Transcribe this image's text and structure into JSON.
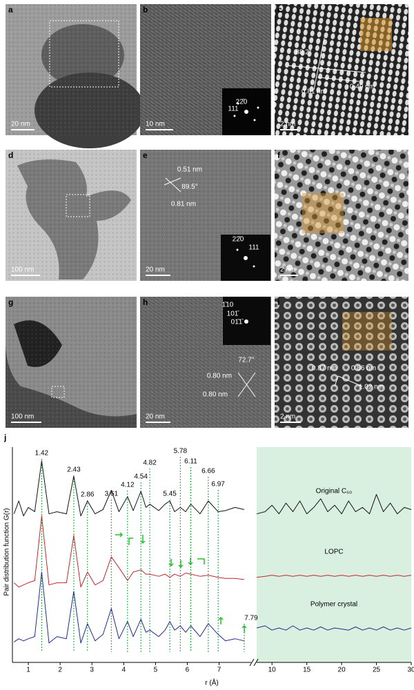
{
  "panels": [
    {
      "label": "a",
      "scale_bar": "20 nm",
      "annotations": []
    },
    {
      "label": "b",
      "scale_bar": "10 nm",
      "annotations": [
        "22̄0",
        "111"
      ]
    },
    {
      "label": "c",
      "scale_bar": "2 nm",
      "annotations": [
        "88.2°",
        "0.81 nm",
        "0.49 nm"
      ]
    },
    {
      "label": "d",
      "scale_bar": "100 nm",
      "annotations": []
    },
    {
      "label": "e",
      "scale_bar": "20 nm",
      "annotations": [
        "0.51 nm",
        "89.5°",
        "0.81 nm",
        "22̄0",
        "111"
      ]
    },
    {
      "label": "f",
      "scale_bar": "2 nm",
      "annotations": []
    },
    {
      "label": "g",
      "scale_bar": "100 nm",
      "annotations": []
    },
    {
      "label": "h",
      "scale_bar": "20 nm",
      "annotations": [
        "1̄10",
        "101̄",
        "01̄1̄",
        "72.7°",
        "0.80 nm",
        "0.80 nm"
      ]
    },
    {
      "label": "i",
      "scale_bar": "2 nm",
      "annotations": [
        "0.87 nm",
        "0.86 nm",
        "1.02 nm"
      ]
    }
  ],
  "chart_data": {
    "type": "line",
    "label": "j",
    "y_label": "Pair distribution function G(r)",
    "x_label": "r (Å)",
    "xlim": [
      0.5,
      7.9
    ],
    "xticks": [
      1,
      2,
      3,
      4,
      5,
      6,
      7
    ],
    "xlim_right": [
      7.8,
      30
    ],
    "xticks_right": [
      10,
      15,
      20,
      25,
      30
    ],
    "ylim": [
      0,
      10
    ],
    "peaks": [
      1.42,
      2.43,
      2.86,
      3.61,
      4.12,
      4.54,
      4.82,
      5.45,
      5.78,
      6.11,
      6.66,
      6.97,
      7.79
    ],
    "x": [
      0.55,
      0.7,
      0.85,
      1.0,
      1.2,
      1.42,
      1.65,
      1.9,
      2.2,
      2.43,
      2.65,
      2.86,
      3.1,
      3.35,
      3.61,
      3.85,
      4.12,
      4.3,
      4.54,
      4.7,
      4.82,
      5.1,
      5.3,
      5.45,
      5.6,
      5.78,
      5.95,
      6.11,
      6.4,
      6.66,
      6.97,
      7.2,
      7.5,
      7.79
    ],
    "x_right": [
      7.8,
      9,
      10,
      11,
      12,
      13,
      14,
      15,
      16,
      17,
      18,
      19,
      20,
      21,
      22,
      23,
      24,
      25,
      26,
      27,
      28,
      29,
      30
    ],
    "series": [
      {
        "name": "Original C₆₀",
        "color": "#111111",
        "values": [
          6.9,
          7.5,
          6.8,
          7.2,
          7.0,
          9.36,
          6.9,
          7.0,
          6.9,
          8.65,
          6.8,
          7.5,
          6.9,
          7.1,
          8.0,
          7.0,
          7.7,
          7.05,
          7.95,
          7.2,
          7.35,
          7.05,
          7.35,
          7.5,
          7.0,
          7.2,
          7.0,
          7.35,
          6.9,
          7.5,
          7.0,
          7.05,
          7.2,
          7.1
        ],
        "values_right": [
          6.9,
          7.0,
          7.3,
          6.9,
          7.4,
          7.0,
          7.5,
          6.9,
          7.2,
          7.6,
          7.0,
          7.3,
          6.9,
          7.5,
          7.0,
          7.2,
          6.9,
          7.8,
          7.0,
          7.4,
          6.9,
          7.2,
          7.1
        ]
      },
      {
        "name": "LOPC",
        "color": "#c0272d",
        "values": [
          3.7,
          3.5,
          3.6,
          3.7,
          3.8,
          6.8,
          3.6,
          3.7,
          3.7,
          5.9,
          3.5,
          4.2,
          3.6,
          3.8,
          4.9,
          4.4,
          3.8,
          4.2,
          4.3,
          4.1,
          4.1,
          4.0,
          4.1,
          3.95,
          4.1,
          4.0,
          4.15,
          4.1,
          4.0,
          4.05,
          3.95,
          3.9,
          3.9,
          3.85
        ],
        "values_right": [
          3.95,
          4.0,
          4.05,
          4.0,
          4.05,
          4.0,
          4.05,
          4.0,
          4.05,
          4.0,
          4.05,
          4.0,
          4.05,
          4.0,
          4.05,
          4.0,
          4.05,
          4.0,
          4.05,
          4.0,
          4.05,
          4.0,
          4.05
        ]
      },
      {
        "name": "Polymer crystal",
        "color": "#1f2a8c",
        "values": [
          0.95,
          1.1,
          1.0,
          1.1,
          1.2,
          4.2,
          0.9,
          1.2,
          1.1,
          3.3,
          0.9,
          1.8,
          1.0,
          1.3,
          2.5,
          1.1,
          1.9,
          1.2,
          2.0,
          1.4,
          1.5,
          1.2,
          1.5,
          1.9,
          1.5,
          1.7,
          1.4,
          1.7,
          1.2,
          1.8,
          1.3,
          1.0,
          1.1,
          1.0
        ],
        "values_right": [
          1.6,
          1.7,
          1.5,
          1.6,
          1.5,
          1.7,
          1.5,
          1.6,
          1.5,
          1.65,
          1.5,
          1.6,
          1.55,
          1.5,
          1.65,
          1.5,
          1.6,
          1.5,
          1.65,
          1.5,
          1.6,
          1.5,
          1.6
        ]
      }
    ]
  }
}
